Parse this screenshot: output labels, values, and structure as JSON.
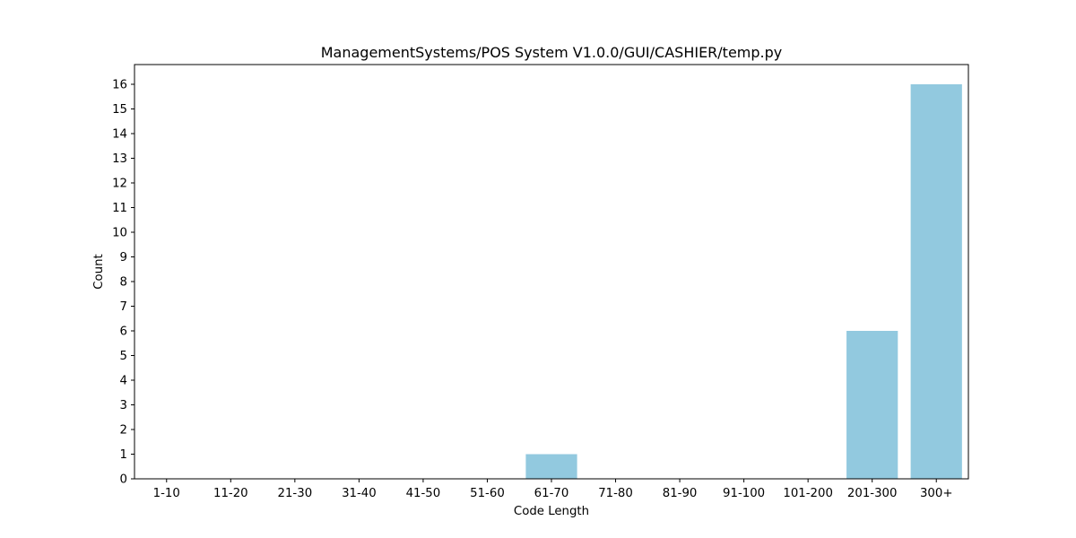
{
  "chart_data": {
    "type": "bar",
    "title": "ManagementSystems/POS System V1.0.0/GUI/CASHIER/temp.py",
    "xlabel": "Code Length",
    "ylabel": "Count",
    "categories": [
      "1-10",
      "11-20",
      "21-30",
      "31-40",
      "41-50",
      "51-60",
      "61-70",
      "71-80",
      "81-90",
      "91-100",
      "101-200",
      "201-300",
      "300+"
    ],
    "values": [
      0,
      0,
      0,
      0,
      0,
      0,
      1,
      0,
      0,
      0,
      0,
      6,
      16
    ],
    "ylim": [
      0,
      16.8
    ],
    "yticks": [
      0,
      1,
      2,
      3,
      4,
      5,
      6,
      7,
      8,
      9,
      10,
      11,
      12,
      13,
      14,
      15,
      16
    ],
    "grid": false,
    "legend": "none",
    "bar_color": "#92c9df"
  }
}
